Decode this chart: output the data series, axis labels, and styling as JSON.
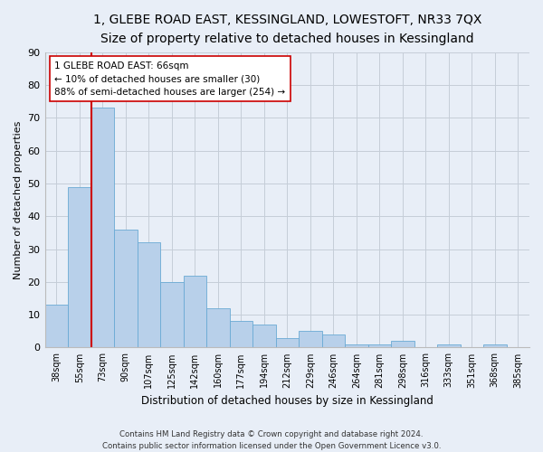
{
  "title_line1": "1, GLEBE ROAD EAST, KESSINGLAND, LOWESTOFT, NR33 7QX",
  "title_line2": "Size of property relative to detached houses in Kessingland",
  "xlabel": "Distribution of detached houses by size in Kessingland",
  "ylabel": "Number of detached properties",
  "footer_line1": "Contains HM Land Registry data © Crown copyright and database right 2024.",
  "footer_line2": "Contains public sector information licensed under the Open Government Licence v3.0.",
  "bar_labels": [
    "38sqm",
    "55sqm",
    "73sqm",
    "90sqm",
    "107sqm",
    "125sqm",
    "142sqm",
    "160sqm",
    "177sqm",
    "194sqm",
    "212sqm",
    "229sqm",
    "246sqm",
    "264sqm",
    "281sqm",
    "298sqm",
    "316sqm",
    "333sqm",
    "351sqm",
    "368sqm",
    "385sqm"
  ],
  "bar_values": [
    13,
    49,
    73,
    36,
    32,
    20,
    22,
    12,
    8,
    7,
    3,
    5,
    4,
    1,
    1,
    2,
    0,
    1,
    0,
    1,
    0
  ],
  "bar_color": "#b8d0ea",
  "bar_edgecolor": "#6aaad4",
  "vline_x": 1.5,
  "vline_color": "#cc0000",
  "annotation_text": "1 GLEBE ROAD EAST: 66sqm\n← 10% of detached houses are smaller (30)\n88% of semi-detached houses are larger (254) →",
  "annotation_box_edgecolor": "#cc0000",
  "annotation_box_facecolor": "#ffffff",
  "ylim": [
    0,
    90
  ],
  "yticks": [
    0,
    10,
    20,
    30,
    40,
    50,
    60,
    70,
    80,
    90
  ],
  "background_color": "#e8eef7",
  "plot_background": "#e8eef7",
  "grid_color": "#c5cdd8",
  "title1_fontsize": 10,
  "title2_fontsize": 9,
  "figsize": [
    6.0,
    5.0
  ],
  "dpi": 100
}
